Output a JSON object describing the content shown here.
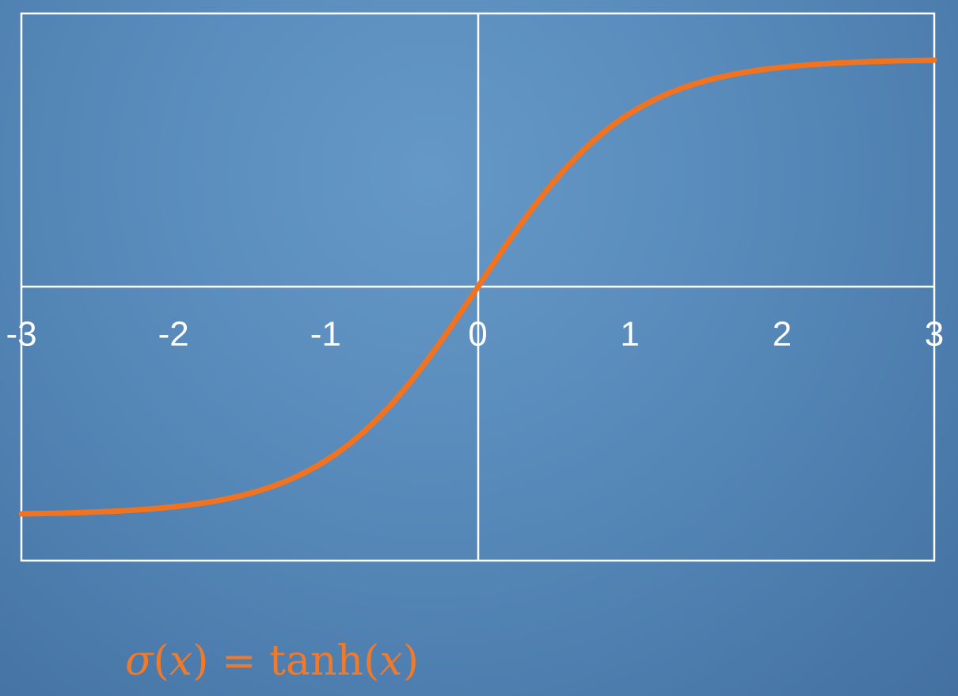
{
  "chart_data": {
    "type": "line",
    "function": "tanh",
    "x_ticks": [
      "-3",
      "-2",
      "-1",
      "0",
      "1",
      "2",
      "3"
    ],
    "xlim": [
      -3,
      3
    ],
    "ylim": [
      -1.2,
      1.2
    ],
    "grid": false,
    "series": [
      {
        "x": [
          -3,
          -2.5,
          -2,
          -1.5,
          -1.25,
          -1,
          -0.75,
          -0.5,
          -0.25,
          0,
          0.25,
          0.5,
          0.75,
          1,
          1.25,
          1.5,
          2,
          2.5,
          3
        ],
        "y": [
          -0.995,
          -0.987,
          -0.964,
          -0.905,
          -0.848,
          -0.762,
          -0.635,
          -0.462,
          -0.245,
          0,
          0.245,
          0.462,
          0.635,
          0.762,
          0.848,
          0.905,
          0.964,
          0.987,
          0.995
        ]
      }
    ],
    "colors": {
      "line": "#f2731f",
      "axes": "#ffffff",
      "background": "#5a8dbd"
    }
  },
  "formula": {
    "lhs_symbol": "σ",
    "lhs_arg": "x",
    "equals": "=",
    "rhs_fn": "tanh",
    "rhs_arg": "x"
  }
}
